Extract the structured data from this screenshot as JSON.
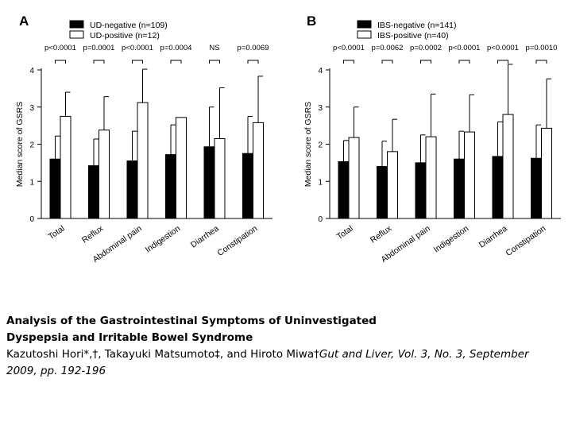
{
  "chart_data": [
    {
      "type": "bar",
      "panel_label": "A",
      "ylabel": "Median score of GSRS",
      "ylim": [
        0,
        4
      ],
      "yticks": [
        0,
        1,
        2,
        3,
        4
      ],
      "categories": [
        "Total",
        "Reflux",
        "Abdominal pain",
        "Indigestion",
        "Diarrhea",
        "Constipation"
      ],
      "pvalues": [
        "p<0.0001",
        "p=0.0001",
        "p<0.0001",
        "p=0.0004",
        "NS",
        "p=0.0069"
      ],
      "series": [
        {
          "name": "UD-negative (n=109)",
          "color": "#000000",
          "values": [
            1.6,
            1.42,
            1.55,
            1.72,
            1.93,
            1.75
          ],
          "errors": [
            0.62,
            0.72,
            0.8,
            0.8,
            1.07,
            1.0
          ]
        },
        {
          "name": "UD-positive (n=12)",
          "color": "#ffffff",
          "values": [
            2.75,
            2.38,
            3.12,
            2.72,
            2.15,
            2.58
          ],
          "errors": [
            0.65,
            0.9,
            0.9,
            0.0,
            1.37,
            1.25
          ]
        }
      ]
    },
    {
      "type": "bar",
      "panel_label": "B",
      "ylabel": "Median score of GSRS",
      "ylim": [
        0,
        4
      ],
      "yticks": [
        0,
        1,
        2,
        3,
        4
      ],
      "categories": [
        "Total",
        "Reflux",
        "Abdominal pain",
        "Indigestion",
        "Diarrhea",
        "Constipation"
      ],
      "pvalues": [
        "p<0.0001",
        "p=0.0062",
        "p=0.0002",
        "p<0.0001",
        "p<0.0001",
        "p=0.0010"
      ],
      "series": [
        {
          "name": "IBS-negative (n=141)",
          "color": "#000000",
          "values": [
            1.53,
            1.4,
            1.5,
            1.6,
            1.67,
            1.62
          ],
          "errors": [
            0.57,
            0.68,
            0.75,
            0.75,
            0.93,
            0.9
          ]
        },
        {
          "name": "IBS-positive (n=40)",
          "color": "#ffffff",
          "values": [
            2.18,
            1.8,
            2.2,
            2.33,
            2.8,
            2.43
          ],
          "errors": [
            0.82,
            0.87,
            1.15,
            1.0,
            1.35,
            1.33
          ]
        }
      ]
    }
  ],
  "caption": {
    "title_line1": "Analysis of the Gastrointestinal Symptoms of Uninvestigated",
    "title_line2": "Dyspepsia and Irritable Bowel Syndrome",
    "authors": "Kazutoshi Hori*,†, Takayuki Matsumoto‡, and Hiroto Miwa†",
    "journal": "Gut and Liver, Vol. 3, No. 3, September 2009, pp. 192-196"
  }
}
